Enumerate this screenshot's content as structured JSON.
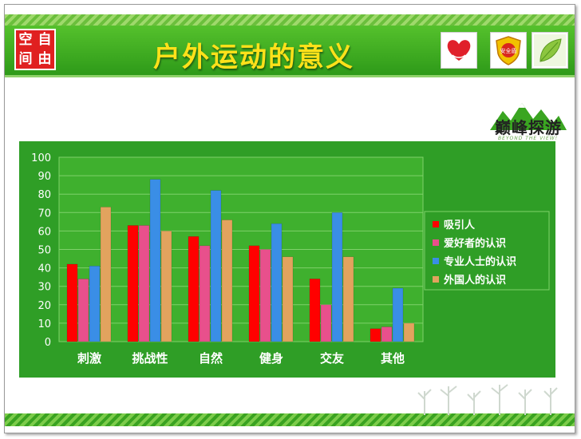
{
  "header": {
    "logo_chars": [
      "空",
      "自",
      "间",
      "由"
    ],
    "title": "户外运动的意义",
    "badge_safety_label": "安全盾"
  },
  "brand": {
    "name": "巅峰探游",
    "tagline": "BEYOND THE VIEW!"
  },
  "colors": {
    "header_green": "#3aa521",
    "title_yellow": "#ffe11a",
    "chart_bg": "#2f9e26",
    "plot_bg": "#3fb02e"
  },
  "chart_data": {
    "type": "bar",
    "categories": [
      "刺激",
      "挑战性",
      "自然",
      "健身",
      "交友",
      "其他"
    ],
    "series": [
      {
        "name": "吸引人",
        "color": "#ff0000",
        "values": [
          42,
          63,
          57,
          52,
          34,
          7
        ]
      },
      {
        "name": "爱好者的认识",
        "color": "#e8508c",
        "values": [
          34,
          63,
          52,
          50,
          20,
          8
        ]
      },
      {
        "name": "专业人士的认识",
        "color": "#3a8ee6",
        "values": [
          41,
          88,
          82,
          64,
          70,
          29
        ]
      },
      {
        "name": "外国人的认识",
        "color": "#e2a35e",
        "values": [
          73,
          60,
          66,
          46,
          46,
          10
        ]
      }
    ],
    "yticks": [
      0,
      10,
      20,
      30,
      40,
      50,
      60,
      70,
      80,
      90,
      100
    ],
    "ylim": [
      0,
      100
    ],
    "grid": true,
    "legend_position": "right"
  }
}
